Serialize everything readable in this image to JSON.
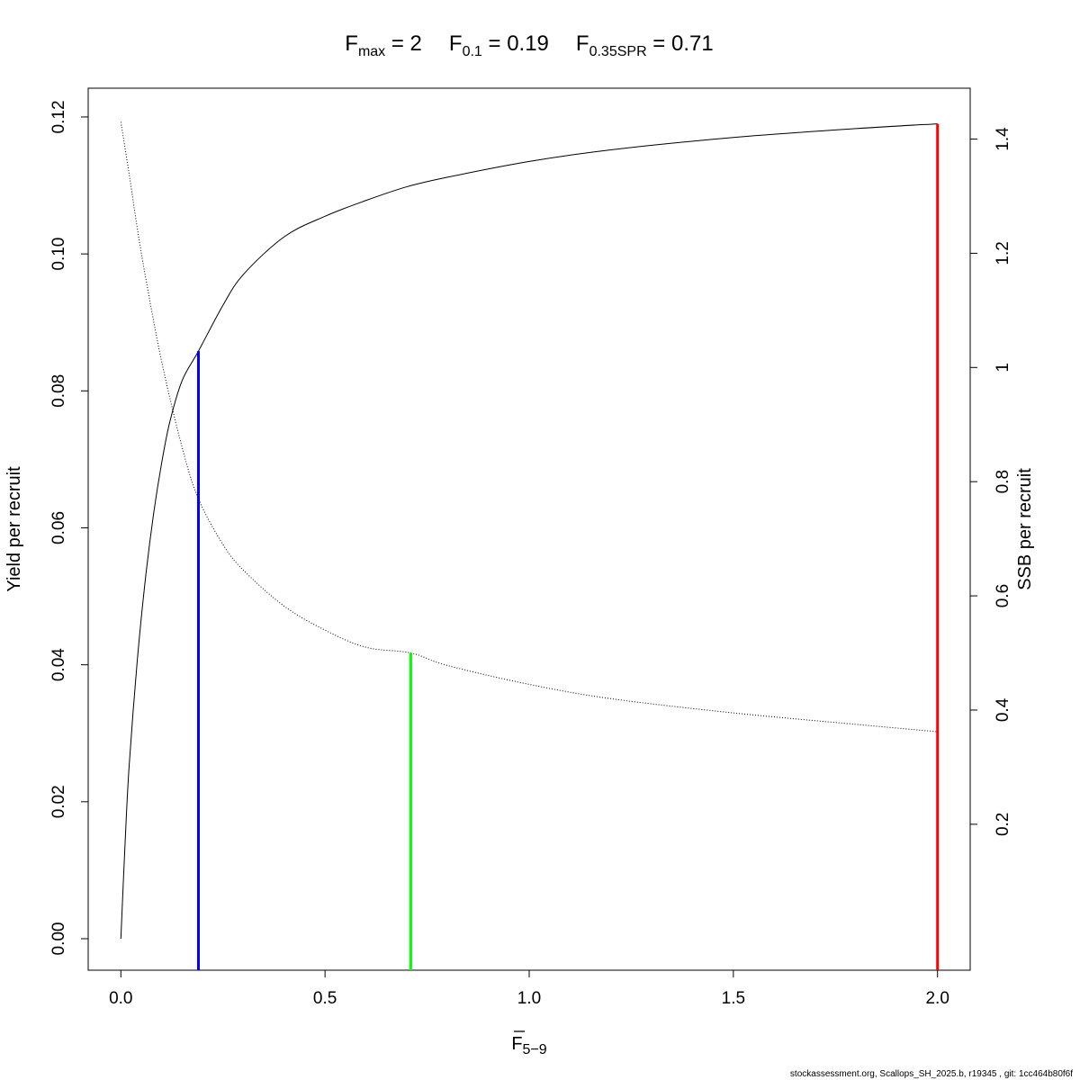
{
  "chart_data": {
    "type": "line",
    "title": {
      "fmax": {
        "base": "F",
        "sub": "max",
        "value": "2"
      },
      "f01": {
        "base": "F",
        "sub": "0.1",
        "value": "0.19"
      },
      "fspr": {
        "base": "F",
        "sub": "0.35SPR",
        "value": "0.71"
      }
    },
    "xlabel": {
      "base": "F",
      "sub": "5−9"
    },
    "ylabel_left": "Yield per recruit",
    "ylabel_right": "SSB per recruit",
    "xlim": [
      -0.08,
      2.08
    ],
    "ylim_left": [
      -0.0046,
      0.1242
    ],
    "ylim_right": [
      -0.0556,
      1.4891
    ],
    "x_ticks": [
      0,
      0.5,
      1,
      1.5,
      2
    ],
    "x_tick_labels": [
      "0.0",
      "0.5",
      "1.0",
      "1.5",
      "2.0"
    ],
    "y_left_ticks": [
      0,
      0.02,
      0.04,
      0.06,
      0.08,
      0.1,
      0.12
    ],
    "y_left_tick_labels": [
      "0.00",
      "0.02",
      "0.04",
      "0.06",
      "0.08",
      "0.10",
      "0.12"
    ],
    "y_right_ticks": [
      0.2,
      0.4,
      0.6,
      0.8,
      1,
      1.2,
      1.4
    ],
    "y_right_tick_labels": [
      "0.2",
      "0.4",
      "0.6",
      "0.8",
      "1",
      "1.2",
      "1.4"
    ],
    "grid": false,
    "series": [
      {
        "axis": "left",
        "style": "solid",
        "color": "#000000",
        "x": [
          0,
          0.01,
          0.02,
          0.04,
          0.06,
          0.08,
          0.1,
          0.12,
          0.15,
          0.19,
          0.25,
          0.3,
          0.4,
          0.5,
          0.6,
          0.7,
          0.8,
          1.0,
          1.2,
          1.5,
          1.8,
          2.0
        ],
        "y": [
          0,
          0.0135,
          0.025,
          0.0405,
          0.0525,
          0.062,
          0.0695,
          0.0755,
          0.0815,
          0.0858,
          0.0925,
          0.097,
          0.1025,
          0.1055,
          0.1078,
          0.1098,
          0.1112,
          0.1135,
          0.1152,
          0.117,
          0.1183,
          0.119
        ]
      },
      {
        "axis": "right",
        "style": "dotted",
        "color": "#000000",
        "x": [
          0,
          0.02,
          0.04,
          0.06,
          0.1,
          0.15,
          0.19,
          0.25,
          0.3,
          0.4,
          0.5,
          0.6,
          0.71,
          0.8,
          1.0,
          1.2,
          1.5,
          1.8,
          2.0
        ],
        "y": [
          1.43,
          1.34,
          1.245,
          1.16,
          1.01,
          0.86,
          0.77,
          0.69,
          0.645,
          0.582,
          0.54,
          0.51,
          0.5,
          0.478,
          0.445,
          0.42,
          0.395,
          0.375,
          0.362
        ]
      }
    ],
    "reference_lines": [
      {
        "name": "F0.1",
        "x": 0.19,
        "axis": "left",
        "y_top": 0.0858,
        "color": "#0000ff"
      },
      {
        "name": "F0.35SPR",
        "x": 0.71,
        "axis": "right",
        "y_top": 0.5,
        "color": "#00ff00"
      },
      {
        "name": "Fmax",
        "x": 2.0,
        "axis": "left",
        "y_top": 0.119,
        "color": "#ff0000"
      }
    ]
  },
  "footer": "stockassessment.org, Scallops_SH_2025.b, r19345 , git: 1cc464b80f6f"
}
